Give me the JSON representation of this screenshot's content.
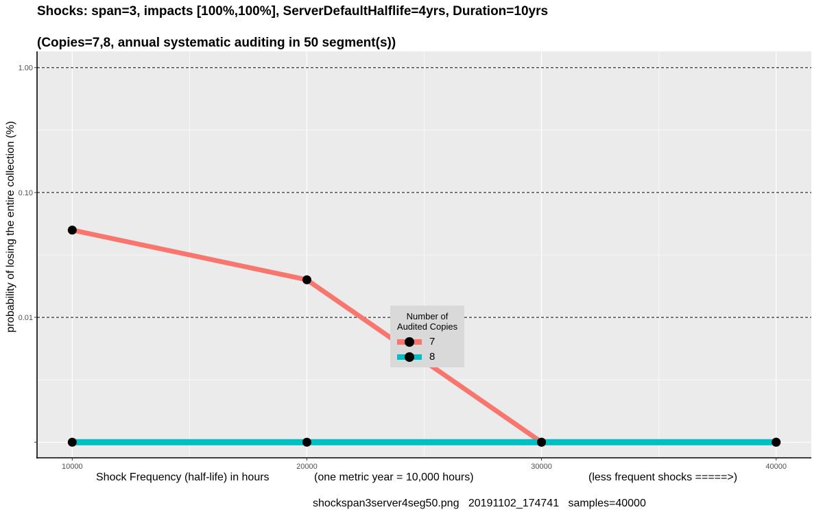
{
  "chart_data": {
    "type": "line",
    "title": "Shocks: span=3, impacts [100%,100%], ServerDefaultHalflife=4yrs, Duration=10yrs",
    "subtitle": "(Copies=7,8, annual systematic auditing in 50 segment(s))",
    "ylabel": "probability of losing the entire collection (%)",
    "xlabel_parts": [
      "Shock Frequency (half-life) in hours",
      "(one metric year = 10,000 hours)",
      "(less frequent shocks =====>)"
    ],
    "footer": "shockspan3server4seg50.png   20191102_174741   samples=40000",
    "y_scale": "log10",
    "ylim": [
      0.00075,
      1.35
    ],
    "xlim": [
      8500,
      41500
    ],
    "x_ticks": [
      10000,
      20000,
      30000,
      40000
    ],
    "x_tick_labels": [
      "10000",
      "20000",
      "30000",
      "40000"
    ],
    "y_ticks": [
      0.01,
      0.1,
      1
    ],
    "y_tick_labels": [
      "0.01",
      "0.10",
      "1.00"
    ],
    "grid": true,
    "legend": {
      "title": [
        "Number of",
        "Audited Copies"
      ],
      "placement": "center"
    },
    "x": [
      10000,
      20000,
      30000,
      40000
    ],
    "series": [
      {
        "name": "7",
        "color": "#f8766d",
        "values": [
          0.05,
          0.02,
          0.001,
          0.001
        ]
      },
      {
        "name": "8",
        "color": "#00bfc4",
        "values": [
          0.001,
          0.001,
          0.001,
          0.001
        ]
      }
    ]
  }
}
